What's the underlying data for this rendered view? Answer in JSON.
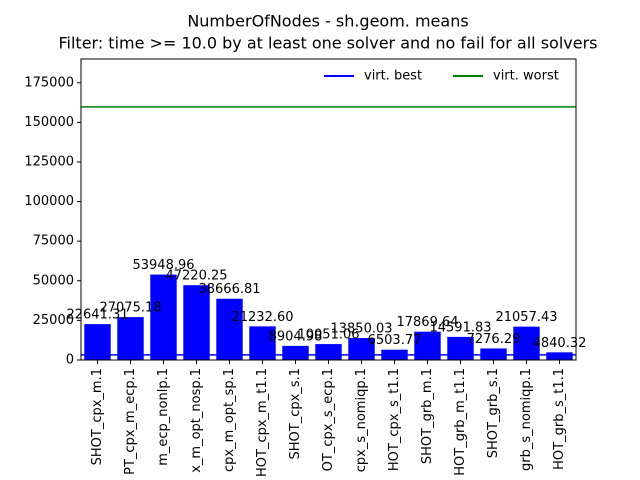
{
  "chart_data": {
    "type": "bar",
    "title": "NumberOfNodes - sh.geom. means",
    "subtitle": "Filter: time >= 10.0 by at least one solver and no fail for all solvers",
    "categories": [
      "SHOT_cpx_m.1",
      "PT_cpx_m_ecp.1",
      "m_ecp_nonlp.1",
      "x_m_opt_nosp.1",
      "cpx_m_opt_sp.1",
      "HOT_cpx_m_t1.1",
      "SHOT_cpx_s.1",
      "OT_cpx_s_ecp.1",
      "cpx_s_nomiqp.1",
      "HOT_cpx_s_t1.1",
      "SHOT_grb_m.1",
      "HOT_grb_m_t1.1",
      "SHOT_grb_s.1",
      "grb_s_nomiqp.1",
      "HOT_grb_s_t1.1"
    ],
    "values": [
      22641.31,
      27075.18,
      53948.96,
      47220.25,
      38666.81,
      21232.6,
      8904.98,
      10051.06,
      13850.03,
      6503.77,
      17869.64,
      14591.83,
      7276.29,
      21057.43,
      4840.32
    ],
    "value_labels": [
      "22641.31",
      "27075.18",
      "53948.96",
      "47220.25",
      "38666.81",
      "21232.60",
      "8904.98",
      "10051.06",
      "13850.03",
      "6503.77",
      "17869.64",
      "14591.83",
      "7276.29",
      "21057.43",
      "4840.32"
    ],
    "color": "#0000ff",
    "ylim": [
      0,
      190000
    ],
    "yticks": [
      0,
      25000,
      50000,
      75000,
      100000,
      125000,
      150000,
      175000
    ],
    "reference_lines": [
      {
        "name": "virt. best",
        "color": "#0000ff",
        "value": 3200
      },
      {
        "name": "virt. worst",
        "color": "#008000",
        "value": 159800
      }
    ],
    "legend": "upper right"
  }
}
